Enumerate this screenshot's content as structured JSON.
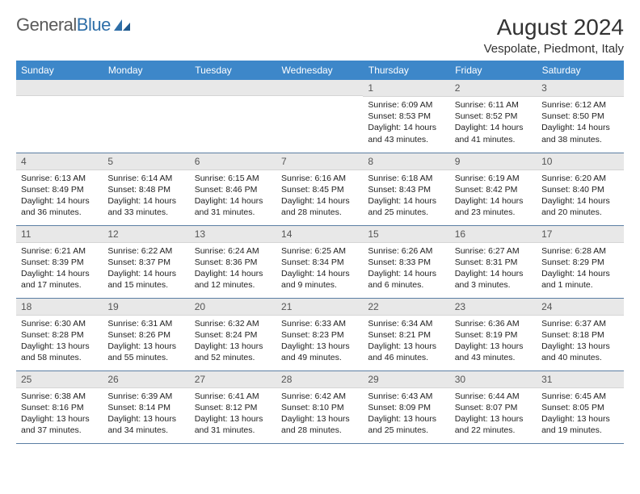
{
  "logo": {
    "text_gray": "General",
    "text_blue": "Blue"
  },
  "title": "August 2024",
  "location": "Vespolate, Piedmont, Italy",
  "colors": {
    "header_bg": "#3d87c9",
    "header_text": "#ffffff",
    "daynum_bg": "#e8e8e8",
    "daynum_text": "#555555",
    "body_text": "#222222",
    "rule": "#5b7ea3",
    "logo_gray": "#5a5a5a",
    "logo_blue": "#2f6fa8"
  },
  "weekdays": [
    "Sunday",
    "Monday",
    "Tuesday",
    "Wednesday",
    "Thursday",
    "Friday",
    "Saturday"
  ],
  "weeks": [
    [
      null,
      null,
      null,
      null,
      {
        "n": "1",
        "sunrise": "6:09 AM",
        "sunset": "8:53 PM",
        "daylight": "14 hours and 43 minutes."
      },
      {
        "n": "2",
        "sunrise": "6:11 AM",
        "sunset": "8:52 PM",
        "daylight": "14 hours and 41 minutes."
      },
      {
        "n": "3",
        "sunrise": "6:12 AM",
        "sunset": "8:50 PM",
        "daylight": "14 hours and 38 minutes."
      }
    ],
    [
      {
        "n": "4",
        "sunrise": "6:13 AM",
        "sunset": "8:49 PM",
        "daylight": "14 hours and 36 minutes."
      },
      {
        "n": "5",
        "sunrise": "6:14 AM",
        "sunset": "8:48 PM",
        "daylight": "14 hours and 33 minutes."
      },
      {
        "n": "6",
        "sunrise": "6:15 AM",
        "sunset": "8:46 PM",
        "daylight": "14 hours and 31 minutes."
      },
      {
        "n": "7",
        "sunrise": "6:16 AM",
        "sunset": "8:45 PM",
        "daylight": "14 hours and 28 minutes."
      },
      {
        "n": "8",
        "sunrise": "6:18 AM",
        "sunset": "8:43 PM",
        "daylight": "14 hours and 25 minutes."
      },
      {
        "n": "9",
        "sunrise": "6:19 AM",
        "sunset": "8:42 PM",
        "daylight": "14 hours and 23 minutes."
      },
      {
        "n": "10",
        "sunrise": "6:20 AM",
        "sunset": "8:40 PM",
        "daylight": "14 hours and 20 minutes."
      }
    ],
    [
      {
        "n": "11",
        "sunrise": "6:21 AM",
        "sunset": "8:39 PM",
        "daylight": "14 hours and 17 minutes."
      },
      {
        "n": "12",
        "sunrise": "6:22 AM",
        "sunset": "8:37 PM",
        "daylight": "14 hours and 15 minutes."
      },
      {
        "n": "13",
        "sunrise": "6:24 AM",
        "sunset": "8:36 PM",
        "daylight": "14 hours and 12 minutes."
      },
      {
        "n": "14",
        "sunrise": "6:25 AM",
        "sunset": "8:34 PM",
        "daylight": "14 hours and 9 minutes."
      },
      {
        "n": "15",
        "sunrise": "6:26 AM",
        "sunset": "8:33 PM",
        "daylight": "14 hours and 6 minutes."
      },
      {
        "n": "16",
        "sunrise": "6:27 AM",
        "sunset": "8:31 PM",
        "daylight": "14 hours and 3 minutes."
      },
      {
        "n": "17",
        "sunrise": "6:28 AM",
        "sunset": "8:29 PM",
        "daylight": "14 hours and 1 minute."
      }
    ],
    [
      {
        "n": "18",
        "sunrise": "6:30 AM",
        "sunset": "8:28 PM",
        "daylight": "13 hours and 58 minutes."
      },
      {
        "n": "19",
        "sunrise": "6:31 AM",
        "sunset": "8:26 PM",
        "daylight": "13 hours and 55 minutes."
      },
      {
        "n": "20",
        "sunrise": "6:32 AM",
        "sunset": "8:24 PM",
        "daylight": "13 hours and 52 minutes."
      },
      {
        "n": "21",
        "sunrise": "6:33 AM",
        "sunset": "8:23 PM",
        "daylight": "13 hours and 49 minutes."
      },
      {
        "n": "22",
        "sunrise": "6:34 AM",
        "sunset": "8:21 PM",
        "daylight": "13 hours and 46 minutes."
      },
      {
        "n": "23",
        "sunrise": "6:36 AM",
        "sunset": "8:19 PM",
        "daylight": "13 hours and 43 minutes."
      },
      {
        "n": "24",
        "sunrise": "6:37 AM",
        "sunset": "8:18 PM",
        "daylight": "13 hours and 40 minutes."
      }
    ],
    [
      {
        "n": "25",
        "sunrise": "6:38 AM",
        "sunset": "8:16 PM",
        "daylight": "13 hours and 37 minutes."
      },
      {
        "n": "26",
        "sunrise": "6:39 AM",
        "sunset": "8:14 PM",
        "daylight": "13 hours and 34 minutes."
      },
      {
        "n": "27",
        "sunrise": "6:41 AM",
        "sunset": "8:12 PM",
        "daylight": "13 hours and 31 minutes."
      },
      {
        "n": "28",
        "sunrise": "6:42 AM",
        "sunset": "8:10 PM",
        "daylight": "13 hours and 28 minutes."
      },
      {
        "n": "29",
        "sunrise": "6:43 AM",
        "sunset": "8:09 PM",
        "daylight": "13 hours and 25 minutes."
      },
      {
        "n": "30",
        "sunrise": "6:44 AM",
        "sunset": "8:07 PM",
        "daylight": "13 hours and 22 minutes."
      },
      {
        "n": "31",
        "sunrise": "6:45 AM",
        "sunset": "8:05 PM",
        "daylight": "13 hours and 19 minutes."
      }
    ]
  ]
}
